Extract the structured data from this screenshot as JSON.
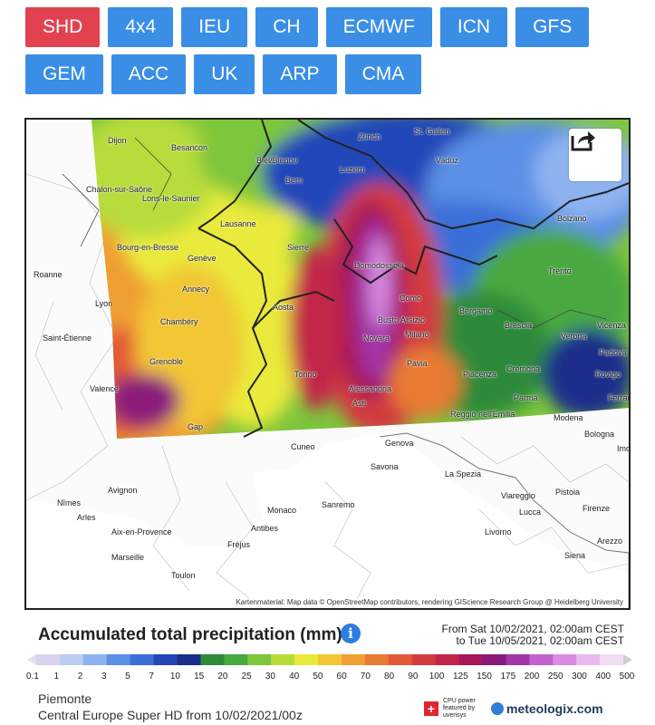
{
  "tabs_row1": [
    "SHD",
    "4x4",
    "IEU",
    "CH",
    "ECMWF",
    "ICN",
    "GFS"
  ],
  "tabs_row2": [
    "GEM",
    "ACC",
    "UK",
    "ARP",
    "CMA"
  ],
  "active_tab": "SHD",
  "map": {
    "attribution": "Kartenmaterial: Map data © OpenStreetMap contributors, rendering GIScience Research Group @ Heidelberg University",
    "cities": [
      {
        "name": "Dijon"
      },
      {
        "name": "Besancon"
      },
      {
        "name": "Biel/Bienne"
      },
      {
        "name": "Zürich"
      },
      {
        "name": "St. Gallen"
      },
      {
        "name": "Bern"
      },
      {
        "name": "Luzern"
      },
      {
        "name": "Vaduz"
      },
      {
        "name": "Chalon-sur-Saône"
      },
      {
        "name": "Lons-le-Saunier"
      },
      {
        "name": "Lausanne"
      },
      {
        "name": "Bolzano"
      },
      {
        "name": "Bourg-en-Bresse"
      },
      {
        "name": "Genève"
      },
      {
        "name": "Sierre"
      },
      {
        "name": "Domodossola"
      },
      {
        "name": "Trento"
      },
      {
        "name": "Roanne"
      },
      {
        "name": "Annecy"
      },
      {
        "name": "Lyon"
      },
      {
        "name": "Aosta"
      },
      {
        "name": "Como"
      },
      {
        "name": "Bergamo"
      },
      {
        "name": "Chambéry"
      },
      {
        "name": "Busto Arsizio"
      },
      {
        "name": "Brescia"
      },
      {
        "name": "Vicenza"
      },
      {
        "name": "Saint-Étienne"
      },
      {
        "name": "Novara"
      },
      {
        "name": "Milano"
      },
      {
        "name": "Verona"
      },
      {
        "name": "Padova"
      },
      {
        "name": "Grenoble"
      },
      {
        "name": "Pavia"
      },
      {
        "name": "Rovigo"
      },
      {
        "name": "Torino"
      },
      {
        "name": "Piacenza"
      },
      {
        "name": "Cremona"
      },
      {
        "name": "Valence"
      },
      {
        "name": "Alessandria"
      },
      {
        "name": "Parma"
      },
      {
        "name": "Ferrara"
      },
      {
        "name": "Asti"
      },
      {
        "name": "Reggio nell'Emilia"
      },
      {
        "name": "Modena"
      },
      {
        "name": "Gap"
      },
      {
        "name": "Bologna"
      },
      {
        "name": "Cuneo"
      },
      {
        "name": "Genova"
      },
      {
        "name": "Imola"
      },
      {
        "name": "Savona"
      },
      {
        "name": "La Spezia"
      },
      {
        "name": "Avignon"
      },
      {
        "name": "Nîmes"
      },
      {
        "name": "Viareggio"
      },
      {
        "name": "Pistoia"
      },
      {
        "name": "Arles"
      },
      {
        "name": "Sanremo"
      },
      {
        "name": "Lucca"
      },
      {
        "name": "Firenze"
      },
      {
        "name": "Aix-en-Provence"
      },
      {
        "name": "Monaco"
      },
      {
        "name": "Antibes"
      },
      {
        "name": "Livorno"
      },
      {
        "name": "Marseille"
      },
      {
        "name": "Fréjus"
      },
      {
        "name": "Siena"
      },
      {
        "name": "Toulon"
      },
      {
        "name": "Arezzo"
      }
    ]
  },
  "legend": {
    "title": "Accumulated total precipitation (mm)",
    "info_icon": "info-icon",
    "period_from": "From Sat 10/02/2021, 02:00am CEST",
    "period_to": "to Tue 10/05/2021, 02:00am CEST",
    "ticks": [
      "0.1",
      "1",
      "2",
      "3",
      "5",
      "7",
      "10",
      "15",
      "20",
      "25",
      "30",
      "40",
      "50",
      "60",
      "70",
      "80",
      "90",
      "100",
      "125",
      "150",
      "175",
      "200",
      "250",
      "300",
      "400",
      "500"
    ],
    "colors": [
      "#d9d4ee",
      "#b9cdf3",
      "#8db3ef",
      "#5b8fe6",
      "#3a6fd8",
      "#2447b8",
      "#1a2f8a",
      "#2f8a3a",
      "#48a93f",
      "#7ec63b",
      "#b7dc3a",
      "#e9ea3a",
      "#f2c634",
      "#ee9e33",
      "#e87a32",
      "#e25a35",
      "#d23a3f",
      "#c22548",
      "#a6185a",
      "#8a1a7a",
      "#a236a8",
      "#c45fd0",
      "#d98be2",
      "#e9b8ef",
      "#f3dcf6"
    ]
  },
  "footer": {
    "region": "Piemonte",
    "model": "Central Europe Super HD from 10/02/2021/00z",
    "cpu_text": "CPU power featured by uvensys",
    "brand": "meteologix.com"
  }
}
